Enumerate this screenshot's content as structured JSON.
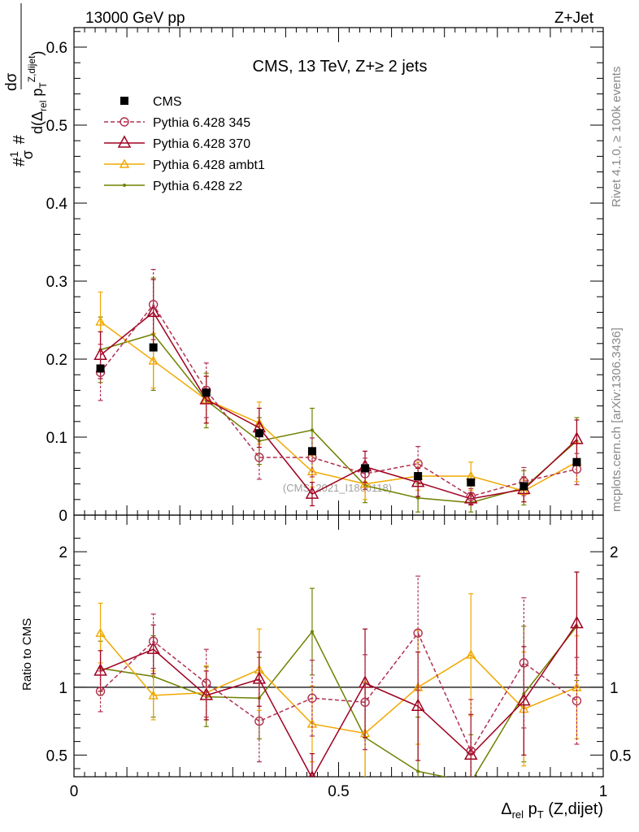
{
  "header": {
    "left": "13000 GeV pp",
    "right": "Z+Jet"
  },
  "side_text": {
    "rivet": "Rivet 4.1.0, ≥ 100k events",
    "mcplots": "mcplots.cern.ch [arXiv:1306.3436]"
  },
  "watermark": "(CMS_2021_I1866118)",
  "colors": {
    "cms": "#000000",
    "p345": "#b03050",
    "p370": "#a00020",
    "ambt1": "#f0a800",
    "z2": "#708000"
  },
  "chart_data": [
    {
      "type": "scatter",
      "panel": "main",
      "title": "CMS, 13 TeV, Z+≥ 2 jets",
      "xlabel": "Δrel pT (Z,dijet)",
      "ylabel": "#1/σ # dσ/d(Δrel pT Z,dijet)",
      "xlim": [
        0,
        1
      ],
      "ylim": [
        0,
        0.625
      ],
      "yticks": [
        0,
        0.1,
        0.2,
        0.3,
        0.4,
        0.5,
        0.6
      ],
      "ytick_labels": [
        "0",
        "0.1",
        "0.2",
        "0.3",
        "0.4",
        "0.5",
        "0.6"
      ],
      "x": [
        0.05,
        0.15,
        0.25,
        0.35,
        0.45,
        0.55,
        0.65,
        0.75,
        0.85,
        0.95
      ],
      "series": [
        {
          "name": "CMS",
          "key": "cms",
          "style": "square",
          "values": [
            0.188,
            0.215,
            0.157,
            0.105,
            0.082,
            0.06,
            0.05,
            0.042,
            0.037,
            0.068
          ]
        },
        {
          "name": "Pythia 6.428 345",
          "key": "p345",
          "style": "circle-dashed",
          "values": [
            0.183,
            0.27,
            0.16,
            0.074,
            0.074,
            0.053,
            0.066,
            0.024,
            0.043,
            0.059
          ],
          "errors": [
            0.036,
            0.045,
            0.035,
            0.028,
            0.025,
            0.02,
            0.022,
            0.01,
            0.018,
            0.02
          ]
        },
        {
          "name": "Pythia 6.428 370",
          "key": "p370",
          "style": "triangle",
          "values": [
            0.205,
            0.26,
            0.148,
            0.112,
            0.027,
            0.062,
            0.042,
            0.021,
            0.033,
            0.097
          ],
          "errors": [
            0.03,
            0.042,
            0.03,
            0.025,
            0.015,
            0.02,
            0.018,
            0.008,
            0.016,
            0.025
          ]
        },
        {
          "name": "Pythia 6.428 ambt1",
          "key": "ambt1",
          "style": "triangle-small",
          "values": [
            0.248,
            0.198,
            0.148,
            0.118,
            0.056,
            0.04,
            0.05,
            0.05,
            0.031,
            0.068
          ],
          "errors": [
            0.038,
            0.035,
            0.03,
            0.027,
            0.02,
            0.02,
            0.018,
            0.018,
            0.014,
            0.025
          ]
        },
        {
          "name": "Pythia 6.428 z2",
          "key": "z2",
          "style": "dot",
          "values": [
            0.212,
            0.232,
            0.147,
            0.095,
            0.109,
            0.038,
            0.022,
            0.016,
            0.035,
            0.095
          ],
          "errors": [
            0.042,
            0.072,
            0.035,
            0.03,
            0.028,
            0.022,
            0.018,
            0.012,
            0.022,
            0.03
          ]
        }
      ]
    },
    {
      "type": "line",
      "panel": "ratio",
      "ylabel": "Ratio to CMS",
      "xlabel": "Δrel pT (Z,dijet)",
      "xlim": [
        0,
        1
      ],
      "ylim": [
        0.34,
        2.27
      ],
      "yticks": [
        0.5,
        1,
        2
      ],
      "ytick_labels": [
        "0.5",
        "1",
        "2"
      ],
      "xticks": [
        0,
        0.5,
        1
      ],
      "xtick_labels": [
        "0",
        "0.5",
        "1"
      ],
      "x": [
        0.05,
        0.15,
        0.25,
        0.35,
        0.45,
        0.55,
        0.65,
        0.75,
        0.85,
        0.95
      ],
      "series": [
        {
          "name": "Pythia 6.428 345",
          "key": "p345",
          "values": [
            0.97,
            1.34,
            1.03,
            0.75,
            0.92,
            0.89,
            1.4,
            0.53,
            1.18,
            0.9
          ],
          "errors": [
            0.15,
            0.2,
            0.25,
            0.3,
            0.28,
            0.35,
            0.42,
            0.38,
            0.48,
            0.32
          ]
        },
        {
          "name": "Pythia 6.428 370",
          "key": "p370",
          "values": [
            1.12,
            1.28,
            0.94,
            1.06,
            0.33,
            1.03,
            0.86,
            0.5,
            0.9,
            1.47
          ],
          "errors": [
            0.15,
            0.18,
            0.18,
            0.2,
            0.18,
            0.4,
            0.4,
            0.3,
            0.4,
            0.38
          ]
        },
        {
          "name": "Pythia 6.428 ambt1",
          "key": "ambt1",
          "values": [
            1.4,
            0.94,
            0.96,
            1.13,
            0.73,
            0.66,
            1.0,
            1.24,
            0.84,
            1.0
          ],
          "errors": [
            0.22,
            0.18,
            0.2,
            0.3,
            0.28,
            0.38,
            0.42,
            0.45,
            0.42,
            0.38
          ]
        },
        {
          "name": "Pythia 6.428 z2",
          "key": "z2",
          "values": [
            1.14,
            1.08,
            0.93,
            0.92,
            1.41,
            0.63,
            0.38,
            0.3,
            0.95,
            1.45
          ],
          "errors": [
            0.2,
            0.3,
            0.22,
            0.3,
            0.32,
            0.4,
            0.4,
            0.35,
            0.5,
            0.4
          ]
        }
      ]
    }
  ]
}
